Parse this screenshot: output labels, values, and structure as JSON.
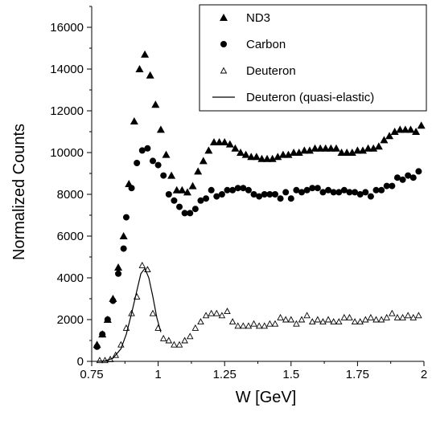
{
  "chart_data": {
    "type": "scatter",
    "title": "",
    "xlabel": "W [GeV]",
    "ylabel": "Normalized Counts",
    "xlim": [
      0.75,
      2.0
    ],
    "ylim": [
      0,
      17000
    ],
    "x_ticks": [
      0.75,
      1.0,
      1.25,
      1.5,
      1.75,
      2.0
    ],
    "x_tick_labels": [
      "0.75",
      "1",
      "1.25",
      "1.5",
      "1.75",
      "2"
    ],
    "y_ticks": [
      0,
      2000,
      4000,
      6000,
      8000,
      10000,
      12000,
      14000,
      16000
    ],
    "y_tick_labels": [
      "0",
      "2000",
      "4000",
      "6000",
      "8000",
      "10000",
      "12000",
      "14000",
      "16000"
    ],
    "grid": false,
    "legend_position": "top-right",
    "series": [
      {
        "name": "ND3",
        "marker": "filled-triangle",
        "color": "#000000",
        "points": [
          [
            0.77,
            800
          ],
          [
            0.79,
            1300
          ],
          [
            0.81,
            2000
          ],
          [
            0.83,
            3000
          ],
          [
            0.85,
            4500
          ],
          [
            0.87,
            6000
          ],
          [
            0.89,
            8500
          ],
          [
            0.91,
            11500
          ],
          [
            0.93,
            14000
          ],
          [
            0.95,
            14700
          ],
          [
            0.97,
            13700
          ],
          [
            0.99,
            12300
          ],
          [
            1.01,
            11100
          ],
          [
            1.03,
            9900
          ],
          [
            1.05,
            8900
          ],
          [
            1.07,
            8200
          ],
          [
            1.09,
            8200
          ],
          [
            1.11,
            8100
          ],
          [
            1.13,
            8400
          ],
          [
            1.15,
            9100
          ],
          [
            1.17,
            9600
          ],
          [
            1.19,
            10100
          ],
          [
            1.21,
            10500
          ],
          [
            1.23,
            10500
          ],
          [
            1.25,
            10500
          ],
          [
            1.27,
            10400
          ],
          [
            1.29,
            10200
          ],
          [
            1.31,
            10000
          ],
          [
            1.33,
            9900
          ],
          [
            1.35,
            9800
          ],
          [
            1.37,
            9800
          ],
          [
            1.39,
            9700
          ],
          [
            1.41,
            9700
          ],
          [
            1.43,
            9700
          ],
          [
            1.45,
            9800
          ],
          [
            1.47,
            9900
          ],
          [
            1.49,
            9900
          ],
          [
            1.51,
            10000
          ],
          [
            1.53,
            10000
          ],
          [
            1.55,
            10100
          ],
          [
            1.57,
            10100
          ],
          [
            1.59,
            10200
          ],
          [
            1.61,
            10200
          ],
          [
            1.63,
            10200
          ],
          [
            1.65,
            10200
          ],
          [
            1.67,
            10200
          ],
          [
            1.69,
            10000
          ],
          [
            1.71,
            10000
          ],
          [
            1.73,
            10000
          ],
          [
            1.75,
            10100
          ],
          [
            1.77,
            10100
          ],
          [
            1.79,
            10200
          ],
          [
            1.81,
            10200
          ],
          [
            1.83,
            10300
          ],
          [
            1.85,
            10600
          ],
          [
            1.87,
            10800
          ],
          [
            1.89,
            11000
          ],
          [
            1.91,
            11100
          ],
          [
            1.93,
            11100
          ],
          [
            1.95,
            11100
          ],
          [
            1.97,
            11000
          ],
          [
            1.99,
            11300
          ]
        ]
      },
      {
        "name": "Carbon",
        "marker": "filled-circle",
        "color": "#000000",
        "points": [
          [
            0.77,
            700
          ],
          [
            0.79,
            1300
          ],
          [
            0.81,
            2000
          ],
          [
            0.83,
            2900
          ],
          [
            0.85,
            4200
          ],
          [
            0.87,
            5400
          ],
          [
            0.88,
            6900
          ],
          [
            0.9,
            8300
          ],
          [
            0.92,
            9500
          ],
          [
            0.94,
            10100
          ],
          [
            0.96,
            10200
          ],
          [
            0.98,
            9600
          ],
          [
            1.0,
            9400
          ],
          [
            1.02,
            8900
          ],
          [
            1.04,
            8000
          ],
          [
            1.06,
            7700
          ],
          [
            1.08,
            7400
          ],
          [
            1.1,
            7100
          ],
          [
            1.12,
            7100
          ],
          [
            1.14,
            7300
          ],
          [
            1.16,
            7700
          ],
          [
            1.18,
            7800
          ],
          [
            1.2,
            8200
          ],
          [
            1.22,
            7900
          ],
          [
            1.24,
            8000
          ],
          [
            1.26,
            8200
          ],
          [
            1.28,
            8200
          ],
          [
            1.3,
            8300
          ],
          [
            1.32,
            8300
          ],
          [
            1.34,
            8200
          ],
          [
            1.36,
            8000
          ],
          [
            1.38,
            7900
          ],
          [
            1.4,
            8000
          ],
          [
            1.42,
            8000
          ],
          [
            1.44,
            8000
          ],
          [
            1.46,
            7800
          ],
          [
            1.48,
            8100
          ],
          [
            1.5,
            7800
          ],
          [
            1.52,
            8200
          ],
          [
            1.54,
            8100
          ],
          [
            1.56,
            8200
          ],
          [
            1.58,
            8300
          ],
          [
            1.6,
            8300
          ],
          [
            1.62,
            8100
          ],
          [
            1.64,
            8200
          ],
          [
            1.66,
            8100
          ],
          [
            1.68,
            8100
          ],
          [
            1.7,
            8200
          ],
          [
            1.72,
            8100
          ],
          [
            1.74,
            8100
          ],
          [
            1.76,
            8000
          ],
          [
            1.78,
            8100
          ],
          [
            1.8,
            7900
          ],
          [
            1.82,
            8200
          ],
          [
            1.84,
            8200
          ],
          [
            1.86,
            8400
          ],
          [
            1.88,
            8400
          ],
          [
            1.9,
            8800
          ],
          [
            1.92,
            8700
          ],
          [
            1.94,
            8900
          ],
          [
            1.96,
            8800
          ],
          [
            1.98,
            9100
          ]
        ]
      },
      {
        "name": "Deuteron",
        "marker": "open-triangle",
        "color": "#000000",
        "points": [
          [
            0.78,
            50
          ],
          [
            0.8,
            50
          ],
          [
            0.82,
            100
          ],
          [
            0.84,
            300
          ],
          [
            0.86,
            800
          ],
          [
            0.88,
            1600
          ],
          [
            0.9,
            2300
          ],
          [
            0.92,
            3100
          ],
          [
            0.94,
            4600
          ],
          [
            0.96,
            4400
          ],
          [
            0.98,
            2300
          ],
          [
            1.0,
            1600
          ],
          [
            1.02,
            1100
          ],
          [
            1.04,
            1000
          ],
          [
            1.06,
            800
          ],
          [
            1.08,
            800
          ],
          [
            1.1,
            1000
          ],
          [
            1.12,
            1200
          ],
          [
            1.14,
            1600
          ],
          [
            1.16,
            1900
          ],
          [
            1.18,
            2200
          ],
          [
            1.2,
            2300
          ],
          [
            1.22,
            2300
          ],
          [
            1.24,
            2200
          ],
          [
            1.26,
            2400
          ],
          [
            1.28,
            1900
          ],
          [
            1.3,
            1700
          ],
          [
            1.32,
            1700
          ],
          [
            1.34,
            1700
          ],
          [
            1.36,
            1800
          ],
          [
            1.38,
            1700
          ],
          [
            1.4,
            1700
          ],
          [
            1.42,
            1800
          ],
          [
            1.44,
            1800
          ],
          [
            1.46,
            2100
          ],
          [
            1.48,
            2000
          ],
          [
            1.5,
            2000
          ],
          [
            1.52,
            1800
          ],
          [
            1.54,
            2000
          ],
          [
            1.56,
            2200
          ],
          [
            1.58,
            1900
          ],
          [
            1.6,
            2000
          ],
          [
            1.62,
            1900
          ],
          [
            1.64,
            2000
          ],
          [
            1.66,
            1900
          ],
          [
            1.68,
            1900
          ],
          [
            1.7,
            2100
          ],
          [
            1.72,
            2100
          ],
          [
            1.74,
            1900
          ],
          [
            1.76,
            1900
          ],
          [
            1.78,
            2000
          ],
          [
            1.8,
            2100
          ],
          [
            1.82,
            2000
          ],
          [
            1.84,
            2000
          ],
          [
            1.86,
            2100
          ],
          [
            1.88,
            2300
          ],
          [
            1.9,
            2100
          ],
          [
            1.92,
            2100
          ],
          [
            1.94,
            2200
          ],
          [
            1.96,
            2100
          ],
          [
            1.98,
            2200
          ]
        ]
      },
      {
        "name": "Deuteron (quasi-elastic)",
        "marker": "line",
        "color": "#000000",
        "points": [
          [
            0.77,
            0
          ],
          [
            0.8,
            20
          ],
          [
            0.83,
            150
          ],
          [
            0.86,
            600
          ],
          [
            0.88,
            1300
          ],
          [
            0.9,
            2300
          ],
          [
            0.92,
            3400
          ],
          [
            0.935,
            4200
          ],
          [
            0.95,
            4450
          ],
          [
            0.965,
            4000
          ],
          [
            0.98,
            3100
          ],
          [
            0.995,
            2100
          ],
          [
            1.01,
            1400
          ]
        ]
      }
    ]
  }
}
